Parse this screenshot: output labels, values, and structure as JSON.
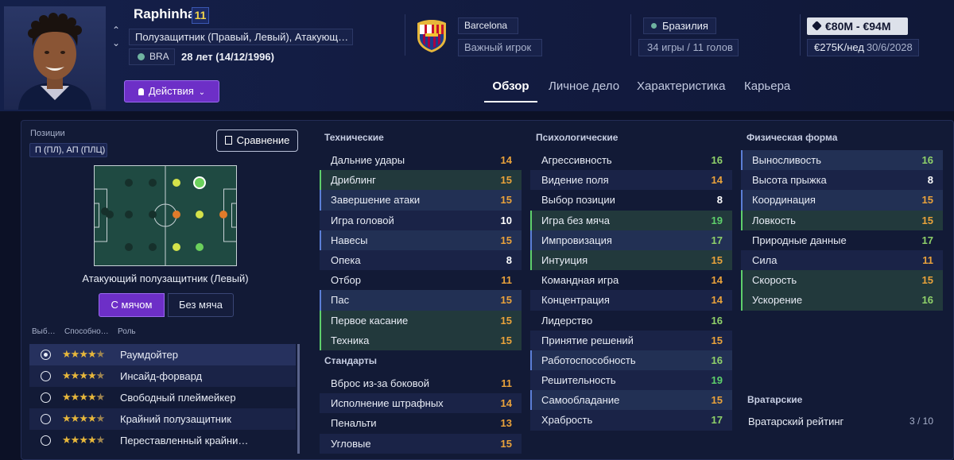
{
  "player": {
    "name": "Raphinha",
    "number": "11",
    "positions_text": "Полузащитник (Правый, Левый), Атакующ…",
    "nationality_code": "BRA",
    "age_text": "28 лет (14/12/1996)",
    "actions_label": "Действия"
  },
  "club": {
    "name": "Barcelona",
    "role": "Важный игрок"
  },
  "country": {
    "name": "Бразилия",
    "caps": "34 игры / 11 голов"
  },
  "contract": {
    "value": "€80M - €94M",
    "wage": "€275K/нед",
    "expires": "30/6/2028"
  },
  "tabs": [
    {
      "label": "Обзор",
      "active": true
    },
    {
      "label": "Личное дело",
      "active": false
    },
    {
      "label": "Характеристика",
      "active": false
    },
    {
      "label": "Карьера",
      "active": false
    }
  ],
  "positions": {
    "label": "Позиции",
    "value": "П (ПЛ), АП (ПЛЦ)",
    "compare_label": "Сравнение",
    "role_name": "Атакующий полузащитник (Левый)",
    "with_ball": "С мячом",
    "without_ball": "Без мяча"
  },
  "roles": {
    "headers": [
      "Выб…",
      "Способно…",
      "Роль"
    ],
    "items": [
      {
        "name": "Раумдойтер",
        "stars": 4,
        "selected": true
      },
      {
        "name": "Инсайд-форвард",
        "stars": 4,
        "selected": false
      },
      {
        "name": "Свободный плеймейкер",
        "stars": 4,
        "selected": false
      },
      {
        "name": "Крайний полузащитник",
        "stars": 4,
        "selected": false
      },
      {
        "name": "Переставленный крайни…",
        "stars": 4,
        "selected": false
      }
    ]
  },
  "technical": {
    "title": "Технические",
    "items": [
      {
        "label": "Дальние удары",
        "value": "14",
        "hl": ""
      },
      {
        "label": "Дриблинг",
        "value": "15",
        "hl": "g"
      },
      {
        "label": "Завершение атаки",
        "value": "15",
        "hl": "b"
      },
      {
        "label": "Игра головой",
        "value": "10",
        "hl": ""
      },
      {
        "label": "Навесы",
        "value": "15",
        "hl": "b"
      },
      {
        "label": "Опека",
        "value": "8",
        "hl": ""
      },
      {
        "label": "Отбор",
        "value": "11",
        "hl": ""
      },
      {
        "label": "Пас",
        "value": "15",
        "hl": "b"
      },
      {
        "label": "Первое касание",
        "value": "15",
        "hl": "g"
      },
      {
        "label": "Техника",
        "value": "15",
        "hl": "g"
      }
    ]
  },
  "setpieces": {
    "title": "Стандарты",
    "items": [
      {
        "label": "Вброс из-за боковой",
        "value": "11",
        "hl": ""
      },
      {
        "label": "Исполнение штрафных",
        "value": "14",
        "hl": ""
      },
      {
        "label": "Пенальти",
        "value": "13",
        "hl": ""
      },
      {
        "label": "Угловые",
        "value": "15",
        "hl": ""
      }
    ]
  },
  "mental": {
    "title": "Психологические",
    "items": [
      {
        "label": "Агрессивность",
        "value": "16",
        "hl": ""
      },
      {
        "label": "Видение поля",
        "value": "14",
        "hl": ""
      },
      {
        "label": "Выбор позиции",
        "value": "8",
        "hl": ""
      },
      {
        "label": "Игра без мяча",
        "value": "19",
        "hl": "g"
      },
      {
        "label": "Импровизация",
        "value": "17",
        "hl": "b"
      },
      {
        "label": "Интуиция",
        "value": "15",
        "hl": "g"
      },
      {
        "label": "Командная игра",
        "value": "14",
        "hl": ""
      },
      {
        "label": "Концентрация",
        "value": "14",
        "hl": ""
      },
      {
        "label": "Лидерство",
        "value": "16",
        "hl": ""
      },
      {
        "label": "Принятие решений",
        "value": "15",
        "hl": ""
      },
      {
        "label": "Работоспособность",
        "value": "16",
        "hl": "b"
      },
      {
        "label": "Решительность",
        "value": "19",
        "hl": ""
      },
      {
        "label": "Самообладание",
        "value": "15",
        "hl": "b"
      },
      {
        "label": "Храбрость",
        "value": "17",
        "hl": ""
      }
    ]
  },
  "physical": {
    "title": "Физическая форма",
    "items": [
      {
        "label": "Выносливость",
        "value": "16",
        "hl": "b"
      },
      {
        "label": "Высота прыжка",
        "value": "8",
        "hl": ""
      },
      {
        "label": "Координация",
        "value": "15",
        "hl": "b"
      },
      {
        "label": "Ловкость",
        "value": "15",
        "hl": "g"
      },
      {
        "label": "Природные данные",
        "value": "17",
        "hl": ""
      },
      {
        "label": "Сила",
        "value": "11",
        "hl": ""
      },
      {
        "label": "Скорость",
        "value": "15",
        "hl": "g"
      },
      {
        "label": "Ускорение",
        "value": "16",
        "hl": "g"
      }
    ]
  },
  "goalkeeping": {
    "title": "Вратарские",
    "label": "Вратарский рейтинг",
    "value": "3 / 10"
  },
  "colors": {
    "accent": "#6d2fc7",
    "value_high": "#5ed06b",
    "value_good": "#8fd16a",
    "value_mid": "#e9a23b",
    "value_low": "#ffffff"
  }
}
